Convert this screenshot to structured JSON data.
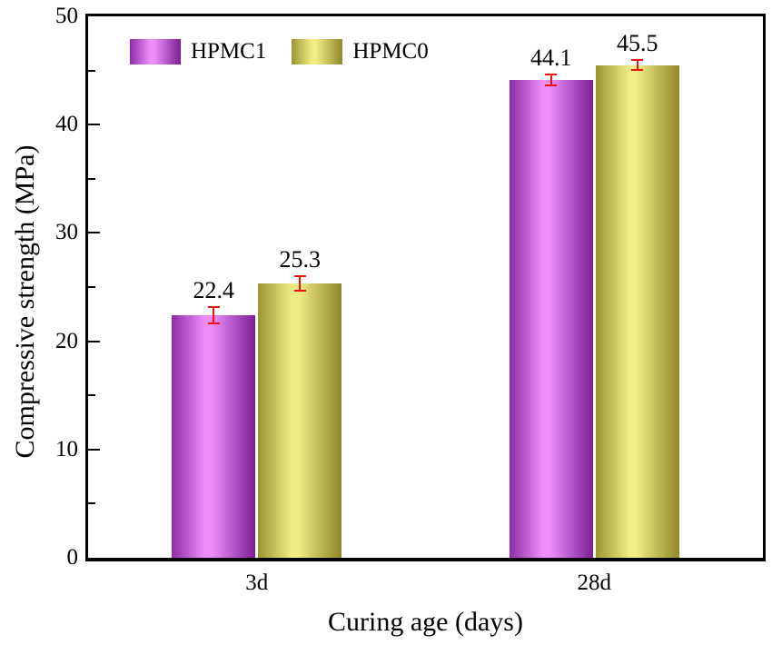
{
  "chart_data": {
    "type": "bar",
    "title": "",
    "categories": [
      "3d",
      "28d"
    ],
    "series": [
      {
        "name": "HPMC1",
        "values": [
          22.4,
          44.1
        ],
        "errors": [
          0.8,
          0.6
        ],
        "gradient": [
          "#8E2BA8",
          "#EF8DFB",
          "#7A1E95"
        ]
      },
      {
        "name": "HPMC0",
        "values": [
          25.3,
          45.5
        ],
        "errors": [
          0.75,
          0.55
        ],
        "gradient": [
          "#9A952F",
          "#F1EC83",
          "#8E892A"
        ]
      }
    ],
    "value_labels": [
      [
        "22.4",
        "44.1"
      ],
      [
        "25.3",
        "45.5"
      ]
    ],
    "xlabel": "Curing age (days)",
    "ylabel": "Compressive strength (MPa)",
    "ylim": [
      0,
      50
    ],
    "yticks_major": [
      0,
      10,
      20,
      30,
      40,
      50
    ],
    "yticks_minor": [
      5,
      15,
      25,
      35,
      45
    ],
    "grid": false,
    "legend_position": "top-left-inside",
    "colors": {
      "axis": "#000000",
      "error_bar": "#EE1111",
      "text": "#000000",
      "background": "#ffffff"
    }
  }
}
